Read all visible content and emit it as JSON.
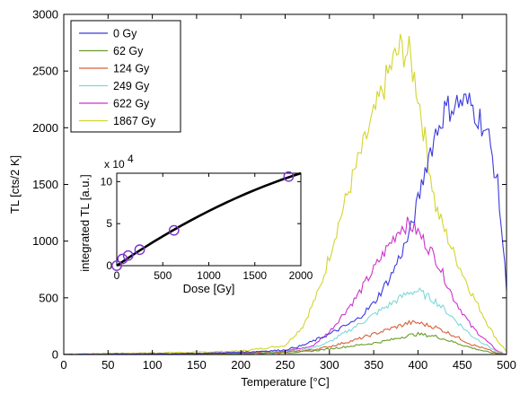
{
  "chart_data": [
    {
      "type": "line",
      "xlabel": "Temperature [°C]",
      "ylabel": "TL [cts/2 K]",
      "xlim": [
        0,
        500
      ],
      "ylim": [
        0,
        3000
      ],
      "xticks": [
        0,
        50,
        100,
        150,
        200,
        250,
        300,
        350,
        400,
        450,
        500
      ],
      "yticks": [
        0,
        500,
        1000,
        1500,
        2000,
        2500,
        3000
      ],
      "legend_position": "top-left",
      "series": [
        {
          "name": "0 Gy",
          "color": "#3a3add",
          "x": [
            0,
            50,
            100,
            150,
            200,
            250,
            270,
            300,
            330,
            350,
            370,
            390,
            400,
            410,
            420,
            430,
            440,
            450,
            460,
            470,
            480,
            490,
            500
          ],
          "y": [
            0,
            3,
            5,
            8,
            20,
            40,
            80,
            180,
            300,
            450,
            700,
            1050,
            1350,
            1700,
            1950,
            2150,
            2200,
            2230,
            2200,
            2080,
            1900,
            1500,
            600
          ]
        },
        {
          "name": "62 Gy",
          "color": "#6b9a2a",
          "x": [
            0,
            50,
            100,
            150,
            200,
            250,
            280,
            300,
            330,
            350,
            370,
            390,
            400,
            420,
            440,
            460,
            480,
            490,
            500
          ],
          "y": [
            0,
            3,
            3,
            5,
            8,
            15,
            30,
            50,
            80,
            100,
            130,
            170,
            180,
            160,
            110,
            60,
            20,
            5,
            0
          ]
        },
        {
          "name": "124 Gy",
          "color": "#d95f3a",
          "x": [
            0,
            50,
            100,
            150,
            200,
            250,
            280,
            300,
            330,
            350,
            370,
            390,
            400,
            420,
            440,
            460,
            480,
            490,
            500
          ],
          "y": [
            0,
            4,
            5,
            8,
            10,
            20,
            40,
            70,
            130,
            180,
            230,
            280,
            280,
            240,
            170,
            90,
            40,
            10,
            0
          ]
        },
        {
          "name": "249 Gy",
          "color": "#7fd8d8",
          "x": [
            0,
            50,
            100,
            150,
            200,
            250,
            280,
            300,
            330,
            350,
            370,
            390,
            400,
            420,
            440,
            460,
            480,
            490,
            500
          ],
          "y": [
            0,
            4,
            5,
            8,
            12,
            25,
            55,
            110,
            250,
            350,
            450,
            550,
            560,
            470,
            320,
            170,
            70,
            20,
            0
          ]
        },
        {
          "name": "622 Gy",
          "color": "#cc33cc",
          "x": [
            0,
            50,
            100,
            150,
            200,
            250,
            280,
            300,
            330,
            350,
            370,
            380,
            390,
            400,
            420,
            440,
            460,
            480,
            490,
            500
          ],
          "y": [
            0,
            5,
            6,
            10,
            15,
            30,
            70,
            200,
            500,
            750,
            1000,
            1120,
            1150,
            1080,
            850,
            500,
            250,
            100,
            30,
            0
          ]
        },
        {
          "name": "1867 Gy",
          "color": "#d4d42e",
          "x": [
            0,
            50,
            100,
            150,
            200,
            250,
            270,
            290,
            310,
            330,
            350,
            370,
            380,
            390,
            400,
            410,
            420,
            440,
            460,
            480,
            490,
            500
          ],
          "y": [
            0,
            10,
            15,
            20,
            30,
            80,
            250,
            600,
            1150,
            1650,
            2100,
            2550,
            2700,
            2650,
            2300,
            1800,
            1300,
            900,
            550,
            250,
            120,
            30
          ]
        }
      ]
    },
    {
      "type": "scatter",
      "xlabel": "Dose [Gy]",
      "ylabel": "integrated TL [a.u.]",
      "y_multiplier_label": "x 10",
      "y_multiplier_exponent": "4",
      "xlim": [
        0,
        2000
      ],
      "ylim": [
        0,
        11
      ],
      "xticks": [
        0,
        500,
        1000,
        1500,
        2000
      ],
      "yticks": [
        0,
        5,
        10
      ],
      "points": {
        "color": "#7a33cc",
        "x": [
          0,
          62,
          124,
          249,
          622,
          1867
        ],
        "y": [
          0,
          0.8,
          1.2,
          1.9,
          4.2,
          10.6
        ]
      },
      "fit": {
        "color": "#000000",
        "x": [
          0,
          100,
          200,
          300,
          400,
          500,
          600,
          700,
          800,
          900,
          1000,
          1100,
          1200,
          1300,
          1400,
          1500,
          1600,
          1700,
          1800,
          1900,
          2000
        ],
        "y": [
          0,
          0.74,
          1.46,
          2.16,
          2.84,
          3.5,
          4.14,
          4.76,
          5.36,
          5.94,
          6.5,
          7.04,
          7.56,
          8.06,
          8.54,
          9.0,
          9.44,
          9.86,
          10.26,
          10.64,
          11.0
        ]
      }
    }
  ]
}
